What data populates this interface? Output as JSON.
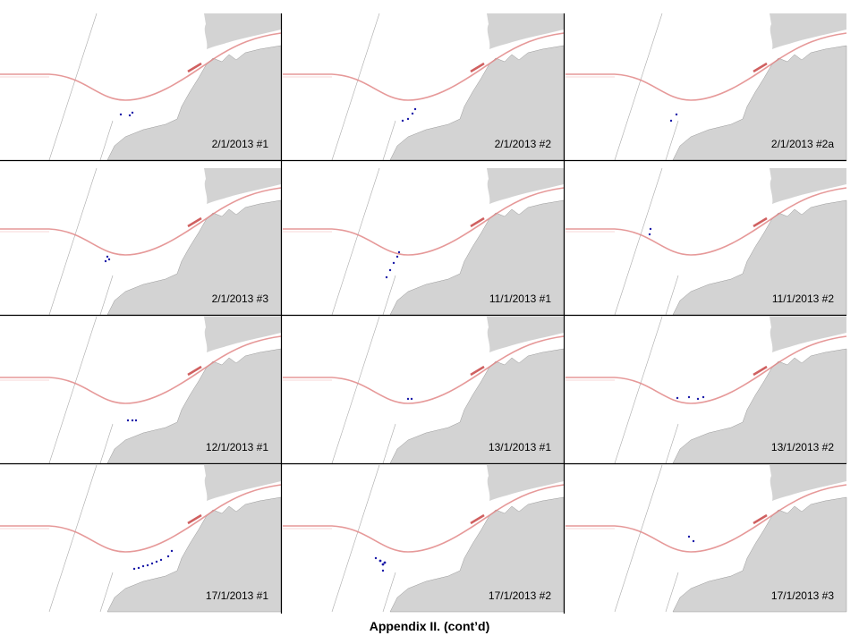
{
  "panels": [
    "2/1/2013 #1",
    "2/1/2013 #2",
    "2/1/2013 #2a",
    "2/1/2013 #3",
    "11/1/2013 #1",
    "11/1/2013 #2",
    "12/1/2013 #1",
    "13/1/2013 #1",
    "13/1/2013 #2",
    "17/1/2013 #1",
    "17/1/2013 #2",
    "17/1/2013 #3"
  ],
  "caption": "Appendix II. (cont’d)"
}
